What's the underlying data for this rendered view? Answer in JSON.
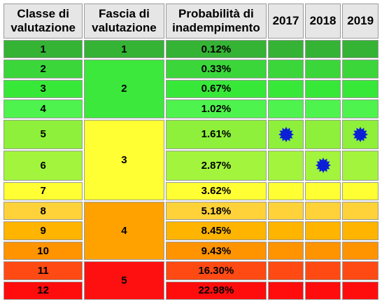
{
  "headers": {
    "classe": "Classe di valutazione",
    "fascia": "Fascia di valutazione",
    "prob": "Probabilità di inadempimento",
    "y1": "2017",
    "y2": "2018",
    "y3": "2019"
  },
  "rows": [
    {
      "classe": "1",
      "prob": "0.12%"
    },
    {
      "classe": "2",
      "prob": "0.33%"
    },
    {
      "classe": "3",
      "prob": "0.67%"
    },
    {
      "classe": "4",
      "prob": "1.02%"
    },
    {
      "classe": "5",
      "prob": "1.61%"
    },
    {
      "classe": "6",
      "prob": "2.87%"
    },
    {
      "classe": "7",
      "prob": "3.62%"
    },
    {
      "classe": "8",
      "prob": "5.18%"
    },
    {
      "classe": "9",
      "prob": "8.45%"
    },
    {
      "classe": "10",
      "prob": "9.43%"
    },
    {
      "classe": "11",
      "prob": "16.30%"
    },
    {
      "classe": "12",
      "prob": "22.98%"
    }
  ],
  "fasce": [
    "1",
    "2",
    "3",
    "4",
    "5"
  ],
  "year_markers": {
    "2017": "5",
    "2018": "6",
    "2019": "5"
  },
  "marker_icon": "blue-star-badge-icon",
  "colors": {
    "header_bg": "#e6e6e6",
    "star": "#0a1fd6",
    "class_1": "#35b335",
    "class_2": "#3ad63a",
    "class_3": "#38e838",
    "class_4": "#4ef34e",
    "class_5": "#8ef03a",
    "class_6": "#a2f53c",
    "class_7": "#ffff33",
    "class_8": "#ffd23a",
    "class_9": "#ffb400",
    "class_10": "#ff9300",
    "class_11": "#ff4a14",
    "class_12": "#ff0d0d",
    "fascia_1": "#35b335",
    "fascia_2": "#3be83b",
    "fascia_3": "#ffff33",
    "fascia_4": "#ffa200",
    "fascia_5": "#ff1010"
  }
}
